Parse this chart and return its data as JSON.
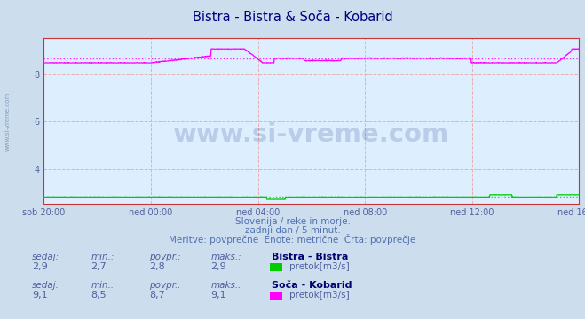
{
  "title": "Bistra - Bistra & Soča - Kobarid",
  "title_color": "#000080",
  "bg_color": "#ccdded",
  "plot_bg_color": "#ddeeff",
  "grid_color_v": "#e8b0b0",
  "grid_color_h": "#e8b0b0",
  "xlabel_color": "#5060a0",
  "ylabel_color": "#5060a0",
  "watermark_text": "www.si-vreme.com",
  "watermark_color": "#1a3a8a",
  "watermark_alpha": 0.18,
  "subtitle_lines": [
    "Slovenija / reke in morje.",
    "zadnji dan / 5 minut.",
    "Meritve: povprečne  Enote: metrične  Črta: povprečje"
  ],
  "subtitle_color": "#5070b0",
  "x_tick_labels": [
    "sob 20:00",
    "ned 00:00",
    "ned 04:00",
    "ned 08:00",
    "ned 12:00",
    "ned 16:00"
  ],
  "x_tick_positions": [
    0,
    288,
    576,
    864,
    1152,
    1440
  ],
  "x_total_points": 1441,
  "ylim": [
    2.5,
    9.55
  ],
  "yticks": [
    4,
    6,
    8
  ],
  "bistra_color": "#00cc00",
  "bistra_avg": 2.8,
  "bistra_min": 2.7,
  "bistra_max": 2.9,
  "bistra_current": 2.9,
  "soca_color": "#ff00ff",
  "soca_avg": 8.7,
  "soca_min": 8.5,
  "soca_max": 9.1,
  "soca_current": 9.1,
  "table_label_color": "#5060a0",
  "table_value_color": "#5060a0",
  "table_header_color": "#000070",
  "bottom_text_color": "#5070b0",
  "spine_color": "#cc3333",
  "left_label": "www.si-vreme.com"
}
